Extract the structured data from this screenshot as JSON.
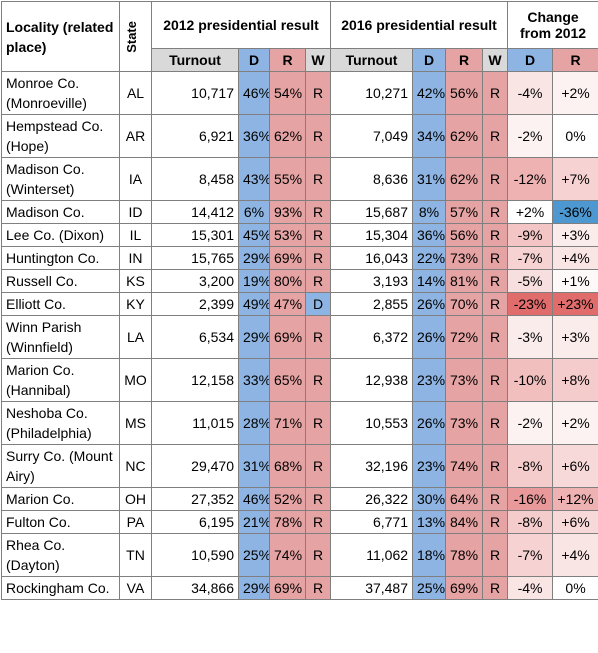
{
  "table": {
    "header": {
      "locality": "Locality (related place)",
      "state": "State",
      "group_2012": "2012 presidential result",
      "group_2016": "2016 presidential result",
      "group_change": "Change from 2012",
      "sub": [
        "Turnout",
        "D",
        "R",
        "W",
        "Turnout",
        "D",
        "R",
        "W",
        "D",
        "R"
      ]
    },
    "rows": [
      [
        "Monroe Co. (Monroeville)",
        "AL",
        "10,717",
        "46%",
        "54%",
        "R",
        "10,271",
        "42%",
        "56%",
        "R",
        "-4%",
        "+2%"
      ],
      [
        "Hempstead Co. (Hope)",
        "AR",
        "6,921",
        "36%",
        "62%",
        "R",
        "7,049",
        "34%",
        "62%",
        "R",
        "-2%",
        "0%"
      ],
      [
        "Madison Co. (Winterset)",
        "IA",
        "8,458",
        "43%",
        "55%",
        "R",
        "8,636",
        "31%",
        "62%",
        "R",
        "-12%",
        "+7%"
      ],
      [
        "Madison Co.",
        "ID",
        "14,412",
        "6%",
        "93%",
        "R",
        "15,687",
        "8%",
        "57%",
        "R",
        "+2%",
        "-36%"
      ],
      [
        "Lee Co. (Dixon)",
        "IL",
        "15,301",
        "45%",
        "53%",
        "R",
        "15,304",
        "36%",
        "56%",
        "R",
        "-9%",
        "+3%"
      ],
      [
        "Huntington Co.",
        "IN",
        "15,765",
        "29%",
        "69%",
        "R",
        "16,043",
        "22%",
        "73%",
        "R",
        "-7%",
        "+4%"
      ],
      [
        "Russell Co.",
        "KS",
        "3,200",
        "19%",
        "80%",
        "R",
        "3,193",
        "14%",
        "81%",
        "R",
        "-5%",
        "+1%"
      ],
      [
        "Elliott Co.",
        "KY",
        "2,399",
        "49%",
        "47%",
        "D",
        "2,855",
        "26%",
        "70%",
        "R",
        "-23%",
        "+23%"
      ],
      [
        "Winn Parish (Winnfield)",
        "LA",
        "6,534",
        "29%",
        "69%",
        "R",
        "6,372",
        "26%",
        "72%",
        "R",
        "-3%",
        "+3%"
      ],
      [
        "Marion Co. (Hannibal)",
        "MO",
        "12,158",
        "33%",
        "65%",
        "R",
        "12,938",
        "23%",
        "73%",
        "R",
        "-10%",
        "+8%"
      ],
      [
        "Neshoba Co. (Philadelphia)",
        "MS",
        "11,015",
        "28%",
        "71%",
        "R",
        "10,553",
        "26%",
        "73%",
        "R",
        "-2%",
        "+2%"
      ],
      [
        "Surry Co. (Mount Airy)",
        "NC",
        "29,470",
        "31%",
        "68%",
        "R",
        "32,196",
        "23%",
        "74%",
        "R",
        "-8%",
        "+6%"
      ],
      [
        "Marion Co.",
        "OH",
        "27,352",
        "46%",
        "52%",
        "R",
        "26,322",
        "30%",
        "64%",
        "R",
        "-16%",
        "+12%"
      ],
      [
        "Fulton Co.",
        "PA",
        "6,195",
        "21%",
        "78%",
        "R",
        "6,771",
        "13%",
        "84%",
        "R",
        "-8%",
        "+6%"
      ],
      [
        "Rhea Co. (Dayton)",
        "TN",
        "10,590",
        "25%",
        "74%",
        "R",
        "11,062",
        "18%",
        "78%",
        "R",
        "-7%",
        "+4%"
      ],
      [
        "Rockingham Co.",
        "VA",
        "34,866",
        "29%",
        "69%",
        "R",
        "37,487",
        "25%",
        "69%",
        "R",
        "-4%",
        "0%"
      ]
    ]
  }
}
